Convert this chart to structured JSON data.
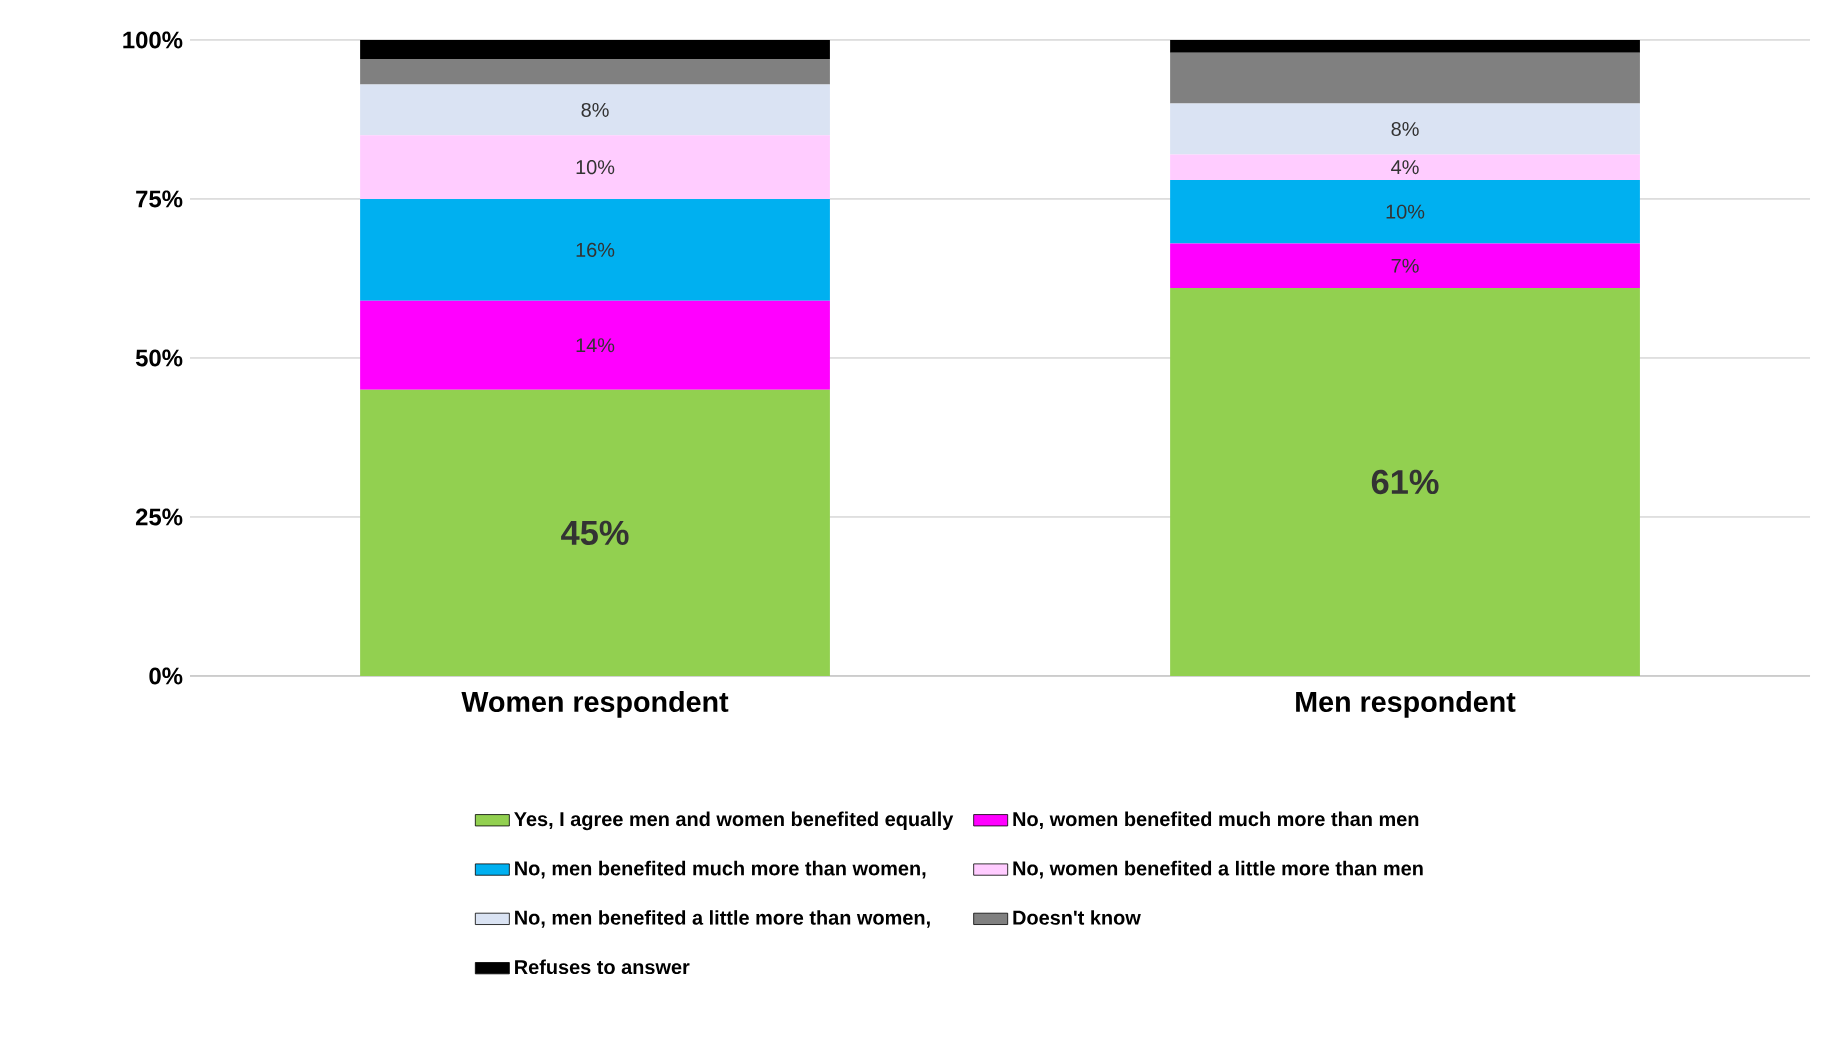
{
  "chart_data": {
    "type": "bar",
    "stacked": true,
    "categories": [
      "Women respondent",
      "Men respondent"
    ],
    "series": [
      {
        "name": "Yes, I agree men and women benefited equally",
        "color": "#92d050",
        "values": [
          45,
          61
        ],
        "value_labels": [
          "45%",
          "61%"
        ]
      },
      {
        "name": "No, women benefited much more than men",
        "color": "#ff00ff",
        "values": [
          14,
          7
        ],
        "value_labels": [
          "14%",
          "7%"
        ]
      },
      {
        "name": "No, men benefited much more than women,",
        "color": "#00b0f0",
        "values": [
          16,
          10
        ],
        "value_labels": [
          "16%",
          "10%"
        ]
      },
      {
        "name": "No, women benefited a little more than men",
        "color": "#ffccff",
        "values": [
          10,
          4
        ],
        "value_labels": [
          "10%",
          "4%"
        ]
      },
      {
        "name": "No, men benefited a little more than women,",
        "color": "#dae3f3",
        "values": [
          8,
          8
        ],
        "value_labels": [
          "8%",
          "8%"
        ]
      },
      {
        "name": "Doesn't know",
        "color": "#808080",
        "values": [
          4,
          8
        ],
        "value_labels": [
          null,
          null
        ]
      },
      {
        "name": "Refuses to answer",
        "color": "#000000",
        "values": [
          3,
          2
        ],
        "value_labels": [
          null,
          null
        ]
      }
    ],
    "ylim": [
      0,
      100
    ],
    "yticks": [
      {
        "value": 0,
        "label": "0%"
      },
      {
        "value": 25,
        "label": "25%"
      },
      {
        "value": 50,
        "label": "50%"
      },
      {
        "value": 75,
        "label": "75%"
      },
      {
        "value": 100,
        "label": "100%"
      }
    ],
    "grid": "y",
    "legend": "bottom"
  }
}
